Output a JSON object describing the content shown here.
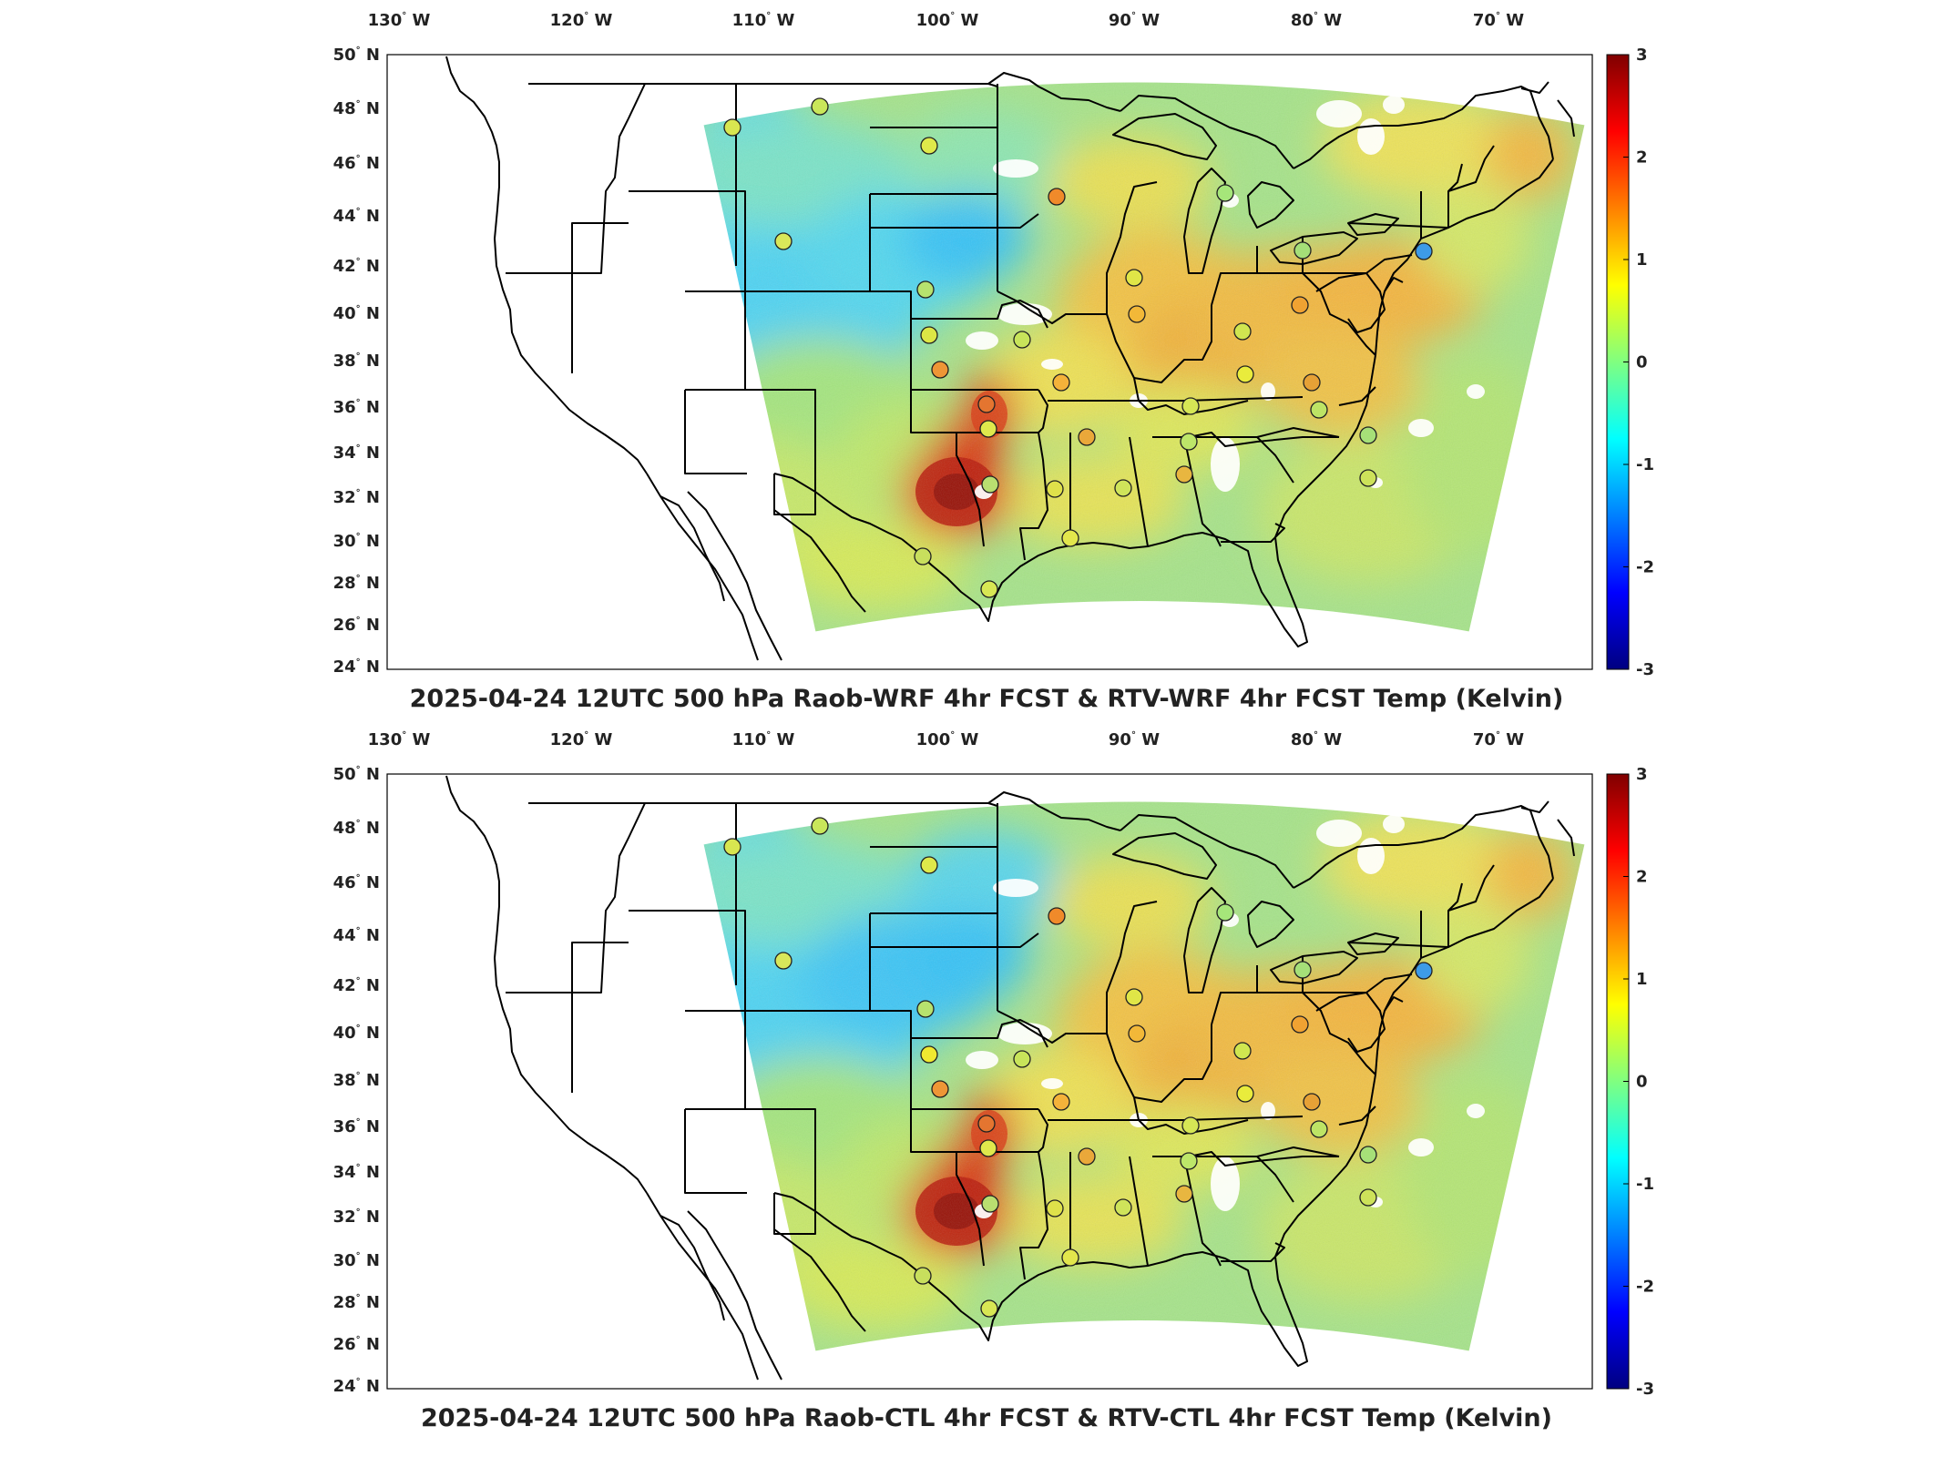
{
  "panels": [
    {
      "title": "2025-04-24 12UTC 500 hPa Raob-WRF 4hr FCST & RTV-WRF 4hr FCST Temp (Kelvin)",
      "variant": "wrf"
    },
    {
      "title": "2025-04-24 12UTC 500 hPa Raob-CTL 4hr FCST & RTV-CTL 4hr FCST Temp (Kelvin)",
      "variant": "ctl"
    }
  ],
  "lon_ticks": [
    "130",
    "120",
    "110",
    "100",
    "90",
    "80",
    "70"
  ],
  "lon_suffix": "W",
  "lat_ticks": [
    "50",
    "48",
    "46",
    "44",
    "42",
    "40",
    "38",
    "36",
    "34",
    "32",
    "30",
    "28",
    "26",
    "24"
  ],
  "lat_suffix": "N",
  "colorbar": {
    "ticks": [
      "3",
      "2",
      "1",
      "0",
      "-1",
      "-2",
      "-3"
    ],
    "colors": [
      "#800000",
      "#ff0000",
      "#ff8000",
      "#ffff00",
      "#80ff80",
      "#00ffff",
      "#0080ff",
      "#0000ff",
      "#000080"
    ]
  },
  "stations_wrf": [
    [
      "#d8e650"
    ],
    [
      "#c9e65a"
    ],
    [
      "#dfe94a"
    ],
    [
      "#f08a2a"
    ],
    [
      "#a6e67a"
    ],
    [
      "#d9e75a"
    ],
    [
      "#e0e647"
    ],
    [
      "#b7e26e"
    ],
    [
      "#3d9be8"
    ],
    [
      "#dde745"
    ],
    [
      "#c8e45a"
    ],
    [
      "#f2b838"
    ],
    [
      "#d0e650"
    ],
    [
      "#a5df78"
    ],
    [
      "#f0a232"
    ],
    [
      "#e9ec3c"
    ],
    [
      "#d6e655"
    ],
    [
      "#ee9636"
    ],
    [
      "#f4b23a"
    ],
    [
      "#bde669"
    ],
    [
      "#dfe84c"
    ],
    [
      "#e47530"
    ],
    [
      "#eaa83a"
    ],
    [
      "#e6a136"
    ],
    [
      "#bde465"
    ],
    [
      "#a6e078"
    ],
    [
      "#cde25a"
    ],
    [
      "#e8b640"
    ],
    [
      "#cfe45a"
    ],
    [
      "#dfe14a"
    ],
    [
      "#b9df70"
    ],
    [
      "#e2e64c"
    ],
    [
      "#c8df5d"
    ],
    [
      "#d8e754"
    ]
  ],
  "stations_ctl": [
    [
      "#d8e650"
    ],
    [
      "#c9e65a"
    ],
    [
      "#dfe94a"
    ],
    [
      "#f08a2a"
    ],
    [
      "#a6e67a"
    ],
    [
      "#d9e75a"
    ],
    [
      "#e0e647"
    ],
    [
      "#b7e26e"
    ],
    [
      "#3d9be8"
    ],
    [
      "#f0e830"
    ],
    [
      "#c8e45a"
    ],
    [
      "#f2b838"
    ],
    [
      "#d0e650"
    ],
    [
      "#a5df78"
    ],
    [
      "#f0a232"
    ],
    [
      "#e9ec3c"
    ],
    [
      "#d6e655"
    ],
    [
      "#ee9636"
    ],
    [
      "#f4b23a"
    ],
    [
      "#bde669"
    ],
    [
      "#dfe84c"
    ],
    [
      "#e47530"
    ],
    [
      "#eaa83a"
    ],
    [
      "#e6a136"
    ],
    [
      "#bde465"
    ],
    [
      "#a6e078"
    ],
    [
      "#cde25a"
    ],
    [
      "#e8b640"
    ],
    [
      "#cfe45a"
    ],
    [
      "#dfe14a"
    ],
    [
      "#b9df70"
    ],
    [
      "#e2e64c"
    ],
    [
      "#c8df5d"
    ],
    [
      "#d8e754"
    ]
  ]
}
